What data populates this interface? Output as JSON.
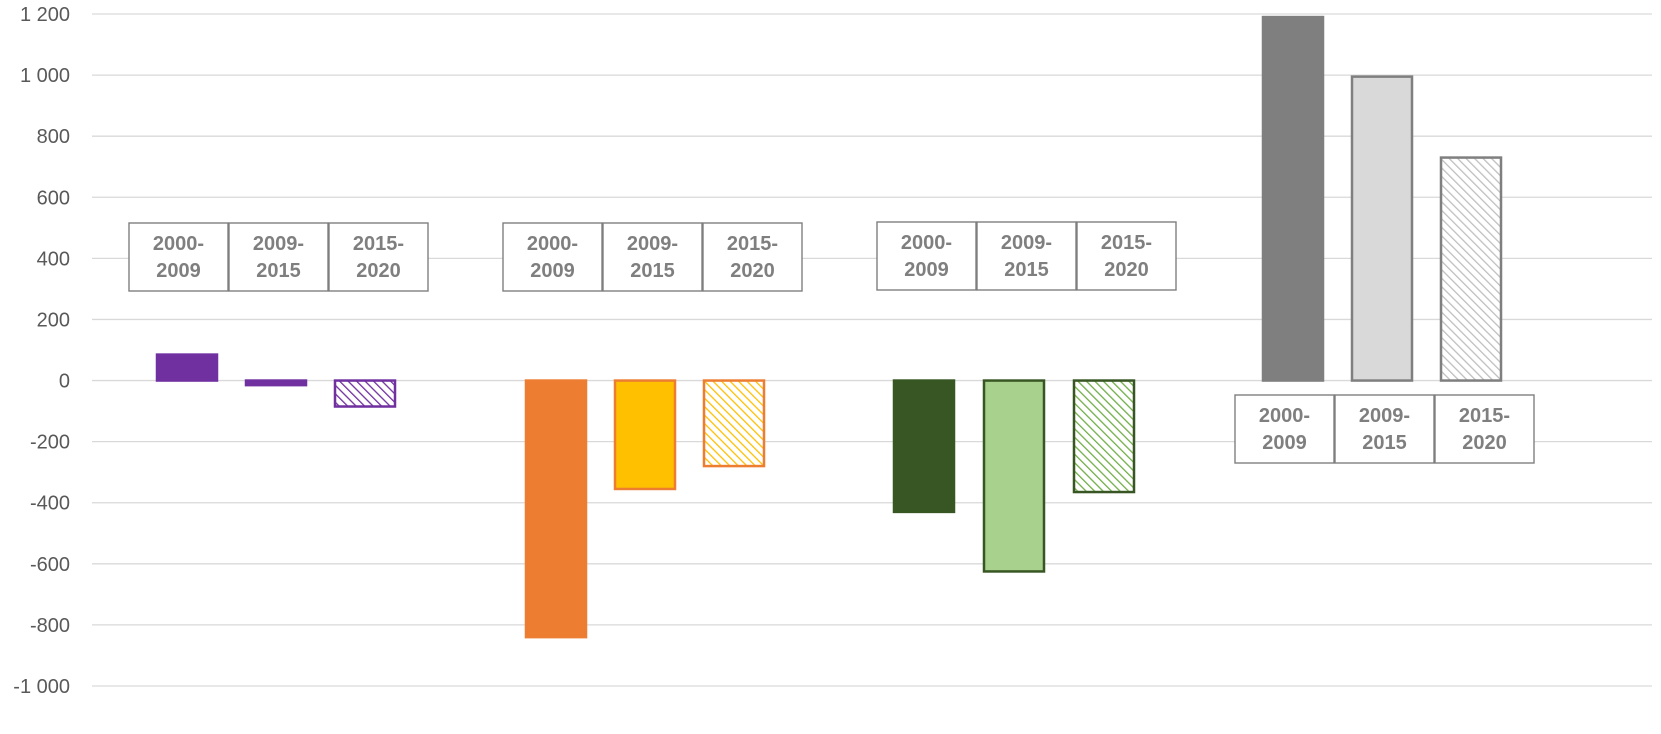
{
  "chart_data": {
    "type": "bar",
    "title": "",
    "xlabel": "",
    "ylabel": "",
    "ylim": [
      -1000,
      1200
    ],
    "yticks": [
      1200,
      1000,
      800,
      600,
      400,
      200,
      0,
      -200,
      -400,
      -600,
      -800,
      -1000
    ],
    "ytick_labels": [
      "1 200",
      "1 000",
      "800",
      "600",
      "400",
      "200",
      "0",
      "-200",
      "-400",
      "-600",
      "-800",
      "-1 000"
    ],
    "grid": true,
    "legend": "none",
    "period_labels": [
      {
        "line1": "2000-",
        "line2": "2009"
      },
      {
        "line1": "2009-",
        "line2": "2015"
      },
      {
        "line1": "2015-",
        "line2": "2020"
      }
    ],
    "groups": [
      {
        "label_position": "above",
        "bars": [
          {
            "period": "2000-2009",
            "value": 85,
            "fill": "#7030a0",
            "stroke": "#7030a0",
            "pattern": "solid"
          },
          {
            "period": "2009-2015",
            "value": -15,
            "fill": "#7030a0",
            "stroke": "#7030a0",
            "pattern": "solid"
          },
          {
            "period": "2015-2020",
            "value": -85,
            "fill": "#7030a0",
            "stroke": "#7030a0",
            "pattern": "hatch"
          }
        ]
      },
      {
        "label_position": "above",
        "bars": [
          {
            "period": "2000-2009",
            "value": -840,
            "fill": "#ed7d31",
            "stroke": "#ed7d31",
            "pattern": "solid"
          },
          {
            "period": "2009-2015",
            "value": -355,
            "fill": "#ffc000",
            "stroke": "#ed7d31",
            "pattern": "solid"
          },
          {
            "period": "2015-2020",
            "value": -280,
            "fill": "#ffc000",
            "stroke": "#ed7d31",
            "pattern": "hatch"
          }
        ]
      },
      {
        "label_position": "above",
        "bars": [
          {
            "period": "2000-2009",
            "value": -430,
            "fill": "#375623",
            "stroke": "#375623",
            "pattern": "solid"
          },
          {
            "period": "2009-2015",
            "value": -625,
            "fill": "#a9d18e",
            "stroke": "#375623",
            "pattern": "solid"
          },
          {
            "period": "2015-2020",
            "value": -365,
            "fill": "#70ad47",
            "stroke": "#375623",
            "pattern": "hatch"
          }
        ]
      },
      {
        "label_position": "below",
        "bars": [
          {
            "period": "2000-2009",
            "value": 1190,
            "fill": "#7f7f7f",
            "stroke": "#7f7f7f",
            "pattern": "solid"
          },
          {
            "period": "2009-2015",
            "value": 995,
            "fill": "#d9d9d9",
            "stroke": "#7f7f7f",
            "pattern": "solid"
          },
          {
            "period": "2015-2020",
            "value": 730,
            "fill": "#bfbfbf",
            "stroke": "#7f7f7f",
            "pattern": "hatch"
          }
        ]
      }
    ]
  }
}
